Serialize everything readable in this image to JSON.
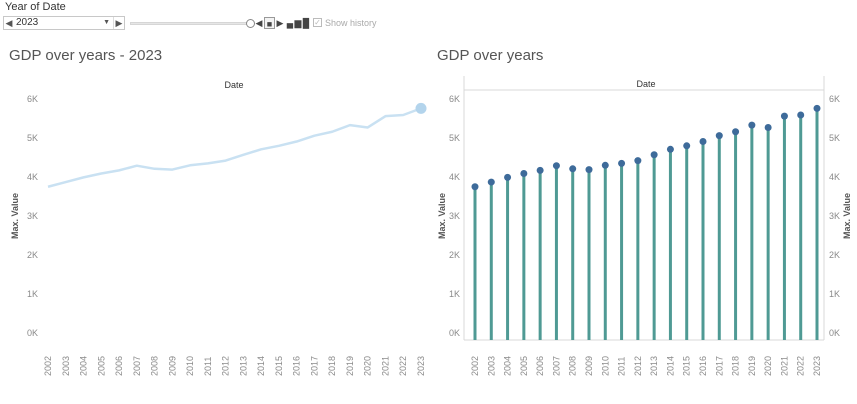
{
  "filter": {
    "label": "Year of Date",
    "selected": "2023",
    "show_history_label": "Show history"
  },
  "charts_meta": {
    "left_title": "GDP over years - 2023",
    "right_title": "GDP over years",
    "header_label": "Date",
    "y_axis_label": "Max. Value"
  },
  "colors": {
    "line": "#c9e1f2",
    "line_highlight": "#b3d4ec",
    "lollipop_bar": "#4f9a94",
    "lollipop_dot": "#3e6b9a"
  },
  "chart_data": [
    {
      "type": "line",
      "title": "GDP over years - 2023",
      "xlabel": "Date",
      "ylabel": "Max. Value",
      "x": [
        "2002",
        "2003",
        "2004",
        "2005",
        "2006",
        "2007",
        "2008",
        "2009",
        "2010",
        "2011",
        "2012",
        "2013",
        "2014",
        "2015",
        "2016",
        "2017",
        "2018",
        "2019",
        "2020",
        "2021",
        "2022",
        "2023"
      ],
      "series": [
        {
          "values": [
            3750,
            3870,
            3990,
            4090,
            4170,
            4290,
            4210,
            4190,
            4300,
            4350,
            4420,
            4570,
            4710,
            4800,
            4910,
            5060,
            5160,
            5330,
            5270,
            5560,
            5590,
            5760
          ]
        }
      ],
      "highlight": "2023",
      "yticks": [
        "0K",
        "1K",
        "2K",
        "3K",
        "4K",
        "5K",
        "6K"
      ],
      "ylim": [
        0,
        6000
      ]
    },
    {
      "type": "bar",
      "title": "GDP over years",
      "xlabel": "Date",
      "ylabel": "Max. Value",
      "style": "lollipop",
      "categories": [
        "2002",
        "2003",
        "2004",
        "2005",
        "2006",
        "2007",
        "2008",
        "2009",
        "2010",
        "2011",
        "2012",
        "2013",
        "2014",
        "2015",
        "2016",
        "2017",
        "2018",
        "2019",
        "2020",
        "2021",
        "2022",
        "2023"
      ],
      "values": [
        3750,
        3870,
        3990,
        4090,
        4170,
        4290,
        4210,
        4190,
        4300,
        4350,
        4420,
        4570,
        4710,
        4800,
        4910,
        5060,
        5160,
        5330,
        5270,
        5560,
        5590,
        5760
      ],
      "yticks": [
        "0K",
        "1K",
        "2K",
        "3K",
        "4K",
        "5K",
        "6K"
      ],
      "ylim": [
        0,
        6000
      ],
      "dual_axis": true
    }
  ]
}
